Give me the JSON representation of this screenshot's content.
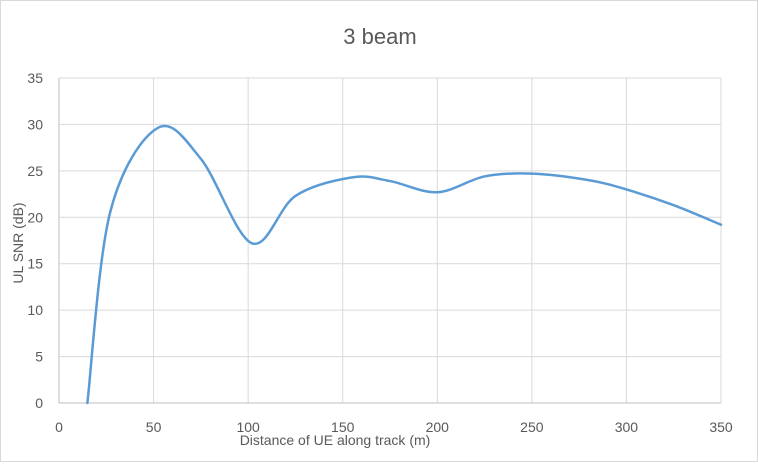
{
  "chart_data": {
    "type": "line",
    "title": "3 beam",
    "xlabel": "Distance of UE along track (m)",
    "ylabel": "UL SNR (dB)",
    "xlim": [
      0,
      350
    ],
    "ylim": [
      0,
      35
    ],
    "x_ticks": [
      0,
      50,
      100,
      150,
      200,
      250,
      300,
      350
    ],
    "y_ticks": [
      0,
      5,
      10,
      15,
      20,
      25,
      30,
      35
    ],
    "grid": true,
    "legend": "none",
    "series": [
      {
        "color": "#5b9bd5",
        "x": [
          15,
          27,
          52,
          75,
          102,
          125,
          155,
          175,
          200,
          225,
          250,
          280,
          300,
          325,
          350
        ],
        "y": [
          0,
          20.5,
          29.6,
          26.3,
          17.2,
          22.3,
          24.3,
          23.9,
          22.7,
          24.4,
          24.7,
          24.0,
          23.0,
          21.3,
          19.2
        ]
      }
    ]
  }
}
